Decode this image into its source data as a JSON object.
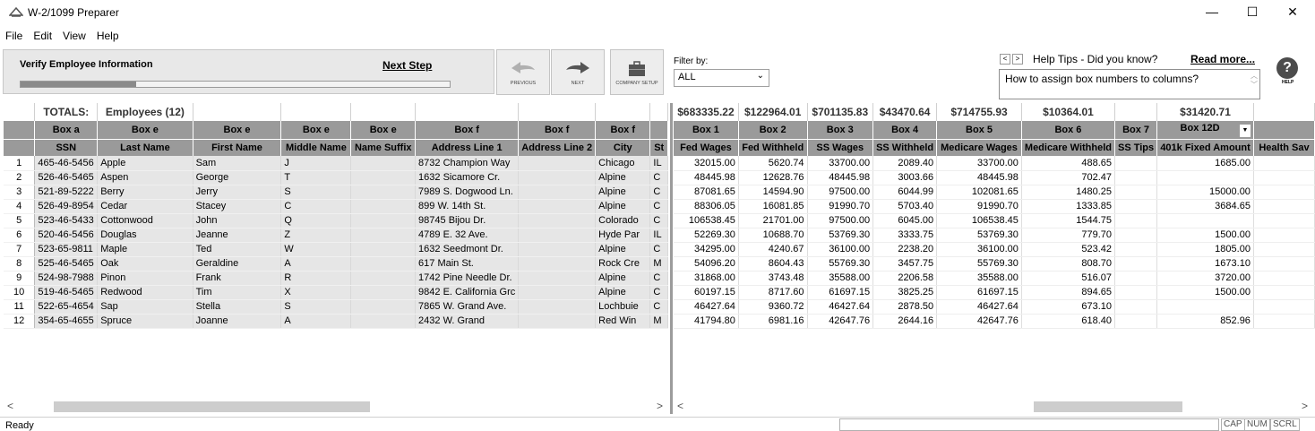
{
  "window": {
    "title": "W-2/1099 Preparer",
    "minimize": "—",
    "maximize": "☐",
    "close": "✕"
  },
  "menu": [
    "File",
    "Edit",
    "View",
    "Help"
  ],
  "toolbar": {
    "step_title": "Verify Employee Information",
    "next_step": "Next Step",
    "progress": 0.27,
    "previous_label": "PREVIOUS",
    "next_label": "NEXT",
    "company_setup_label": "COMPANY SETUP"
  },
  "filter": {
    "label": "Filter by:",
    "value": "ALL"
  },
  "help": {
    "title": "Help Tips - Did you know?",
    "read_more": "Read more...",
    "text": "How to assign box numbers to columns?",
    "icon_label": "HELP"
  },
  "left_grid": {
    "totals_label": "TOTALS:",
    "employees_label": "Employees (12)",
    "boxes": [
      "Box a",
      "Box e",
      "Box e",
      "Box e",
      "Box e",
      "Box f",
      "Box f",
      "Box f",
      ""
    ],
    "headers": [
      "SSN",
      "Last Name",
      "First Name",
      "Middle Name",
      "Name Suffix",
      "Address Line 1",
      "Address Line 2",
      "City",
      "St"
    ],
    "rows": [
      [
        "1",
        "465-46-5456",
        "Apple",
        "Sam",
        "J",
        "",
        "8732 Champion Way",
        "",
        "Chicago",
        "IL"
      ],
      [
        "2",
        "526-46-5465",
        "Aspen",
        "George",
        "T",
        "",
        "1632 Sicamore Cr.",
        "",
        "Alpine",
        "C"
      ],
      [
        "3",
        "521-89-5222",
        "Berry",
        "Jerry",
        "S",
        "",
        "7989 S. Dogwood Ln.",
        "",
        "Alpine",
        "C"
      ],
      [
        "4",
        "526-49-8954",
        "Cedar",
        "Stacey",
        "C",
        "",
        "899 W. 14th St.",
        "",
        "Alpine",
        "C"
      ],
      [
        "5",
        "523-46-5433",
        "Cottonwood",
        "John",
        "Q",
        "",
        "98745 Bijou Dr.",
        "",
        "Colorado",
        "C"
      ],
      [
        "6",
        "520-46-5456",
        "Douglas",
        "Jeanne",
        "Z",
        "",
        "4789 E. 32 Ave.",
        "",
        "Hyde Par",
        "IL"
      ],
      [
        "7",
        "523-65-9811",
        "Maple",
        "Ted",
        "W",
        "",
        "1632 Seedmont Dr.",
        "",
        "Alpine",
        "C"
      ],
      [
        "8",
        "525-46-5465",
        "Oak",
        "Geraldine",
        "A",
        "",
        "617 Main St.",
        "",
        "Rock Cre",
        "M"
      ],
      [
        "9",
        "524-98-7988",
        "Pinon",
        "Frank",
        "R",
        "",
        "1742 Pine Needle Dr.",
        "",
        "Alpine",
        "C"
      ],
      [
        "10",
        "519-46-5465",
        "Redwood",
        "Tim",
        "X",
        "",
        "9842 E. California Grc",
        "",
        "Alpine",
        "C"
      ],
      [
        "11",
        "522-65-4654",
        "Sap",
        "Stella",
        "S",
        "",
        "7865 W. Grand Ave.",
        "",
        "Lochbuie",
        "C"
      ],
      [
        "12",
        "354-65-4655",
        "Spruce",
        "Joanne",
        "A",
        "",
        "2432 W. Grand",
        "",
        "Red Win",
        "M"
      ]
    ]
  },
  "right_grid": {
    "totals": [
      "$683335.22",
      "$122964.01",
      "$701135.83",
      "$43470.64",
      "$714755.93",
      "$10364.01",
      "",
      "$31420.71",
      ""
    ],
    "boxes": [
      "Box 1",
      "Box 2",
      "Box 3",
      "Box 4",
      "Box 5",
      "Box 6",
      "Box 7",
      "Box 12D",
      ""
    ],
    "dropdown_glyph": "▼",
    "headers": [
      "Fed Wages",
      "Fed Withheld",
      "SS Wages",
      "SS Withheld",
      "Medicare Wages",
      "Medicare Withheld",
      "SS Tips",
      "401k Fixed Amount",
      "Health Sav"
    ],
    "rows": [
      [
        "32015.00",
        "5620.74",
        "33700.00",
        "2089.40",
        "33700.00",
        "488.65",
        "",
        "1685.00",
        ""
      ],
      [
        "48445.98",
        "12628.76",
        "48445.98",
        "3003.66",
        "48445.98",
        "702.47",
        "",
        "",
        ""
      ],
      [
        "87081.65",
        "14594.90",
        "97500.00",
        "6044.99",
        "102081.65",
        "1480.25",
        "",
        "15000.00",
        ""
      ],
      [
        "88306.05",
        "16081.85",
        "91990.70",
        "5703.40",
        "91990.70",
        "1333.85",
        "",
        "3684.65",
        ""
      ],
      [
        "106538.45",
        "21701.00",
        "97500.00",
        "6045.00",
        "106538.45",
        "1544.75",
        "",
        "",
        ""
      ],
      [
        "52269.30",
        "10688.70",
        "53769.30",
        "3333.75",
        "53769.30",
        "779.70",
        "",
        "1500.00",
        ""
      ],
      [
        "34295.00",
        "4240.67",
        "36100.00",
        "2238.20",
        "36100.00",
        "523.42",
        "",
        "1805.00",
        ""
      ],
      [
        "54096.20",
        "8604.43",
        "55769.30",
        "3457.75",
        "55769.30",
        "808.70",
        "",
        "1673.10",
        ""
      ],
      [
        "31868.00",
        "3743.48",
        "35588.00",
        "2206.58",
        "35588.00",
        "516.07",
        "",
        "3720.00",
        ""
      ],
      [
        "60197.15",
        "8717.60",
        "61697.15",
        "3825.25",
        "61697.15",
        "894.65",
        "",
        "1500.00",
        ""
      ],
      [
        "46427.64",
        "9360.72",
        "46427.64",
        "2878.50",
        "46427.64",
        "673.10",
        "",
        "",
        ""
      ],
      [
        "41794.80",
        "6981.16",
        "42647.76",
        "2644.16",
        "42647.76",
        "618.40",
        "",
        "852.96",
        ""
      ]
    ]
  },
  "scroll": {
    "left_arrow": "<",
    "right_arrow": ">"
  },
  "status": {
    "text": "Ready",
    "cap": "CAP",
    "num": "NUM",
    "scrl": "SCRL"
  }
}
